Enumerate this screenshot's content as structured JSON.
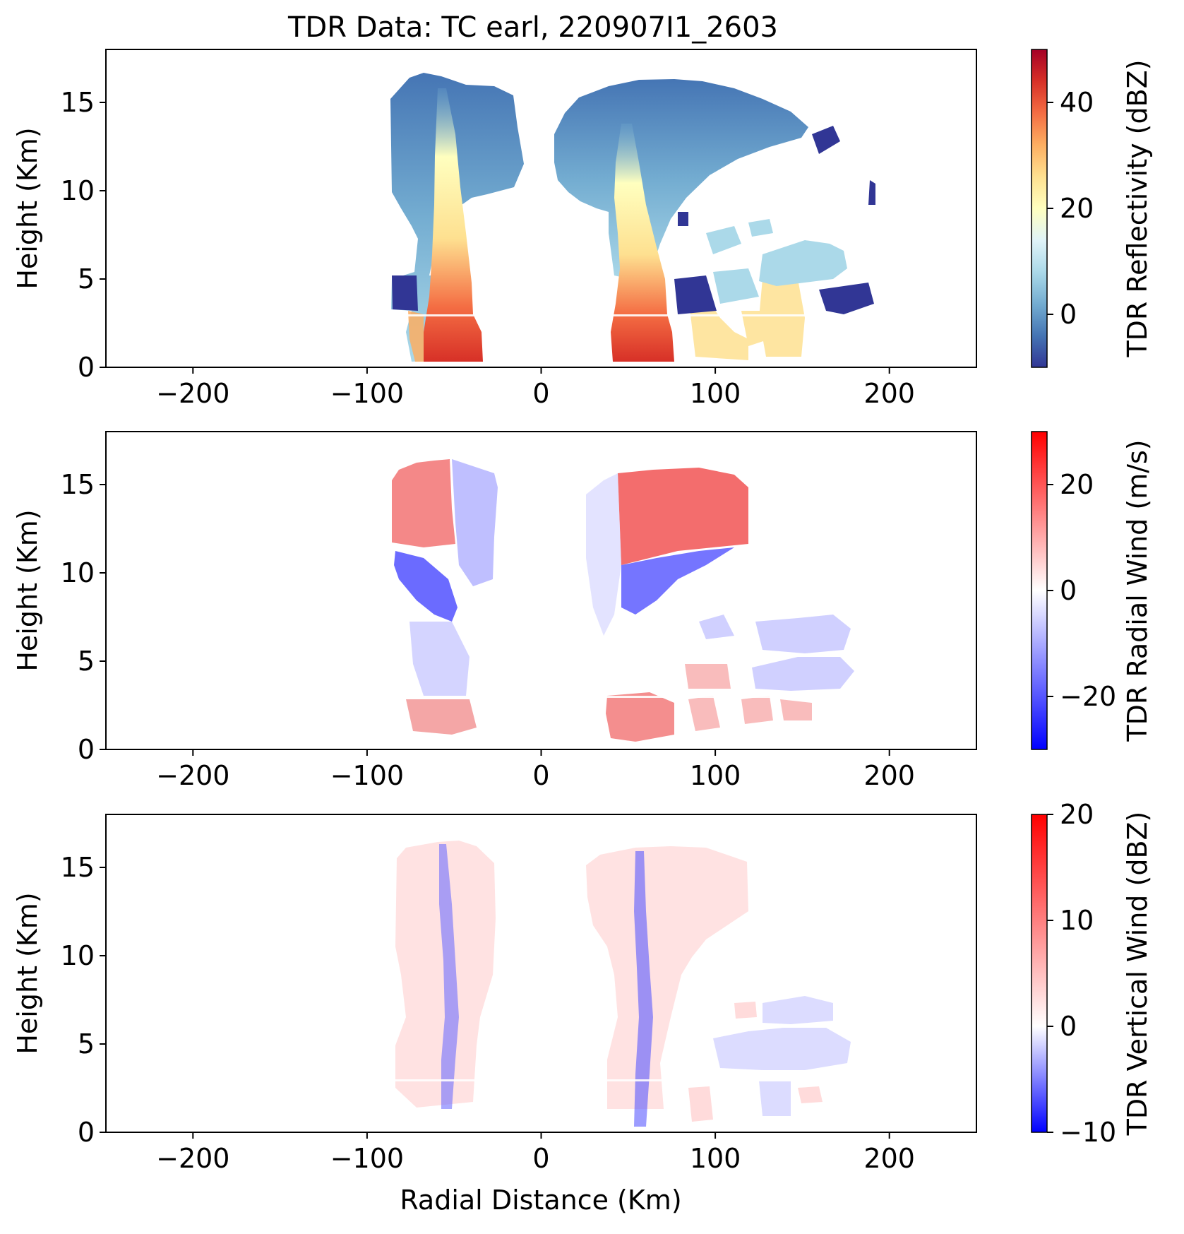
{
  "title": "TDR Data: TC earl, 220907I1_2603",
  "chart_data": [
    {
      "type": "heatmap",
      "field": "reflectivity",
      "xlabel": "",
      "ylabel": "Height (Km)",
      "xlim": [
        -250,
        250
      ],
      "ylim": [
        0,
        18
      ],
      "xticks": [
        -200,
        -100,
        0,
        100,
        200
      ],
      "yticks": [
        0,
        5,
        10,
        15
      ],
      "colorbar": {
        "label": "TDR Reflectivity (dBZ)",
        "range": [
          -10,
          50
        ],
        "ticks": [
          0,
          20,
          40
        ],
        "colormap": "RdYlBu_r"
      }
    },
    {
      "type": "heatmap",
      "field": "radial_wind",
      "xlabel": "",
      "ylabel": "Height (Km)",
      "xlim": [
        -250,
        250
      ],
      "ylim": [
        0,
        18
      ],
      "xticks": [
        -200,
        -100,
        0,
        100,
        200
      ],
      "yticks": [
        0,
        5,
        10,
        15
      ],
      "colorbar": {
        "label": "TDR Radial Wind (m/s)",
        "range": [
          -30,
          30
        ],
        "ticks": [
          -20,
          0,
          20
        ],
        "colormap": "bwr"
      }
    },
    {
      "type": "heatmap",
      "field": "vertical_wind",
      "xlabel": "Radial Distance (Km)",
      "ylabel": "Height (Km)",
      "xlim": [
        -250,
        250
      ],
      "ylim": [
        0,
        18
      ],
      "xticks": [
        -200,
        -100,
        0,
        100,
        200
      ],
      "yticks": [
        0,
        5,
        10,
        15
      ],
      "colorbar": {
        "label": "TDR Vertical Wind (dBZ)",
        "range": [
          -10,
          20
        ],
        "ticks": [
          -10,
          0,
          10,
          20
        ],
        "colormap": "bwr"
      }
    }
  ]
}
